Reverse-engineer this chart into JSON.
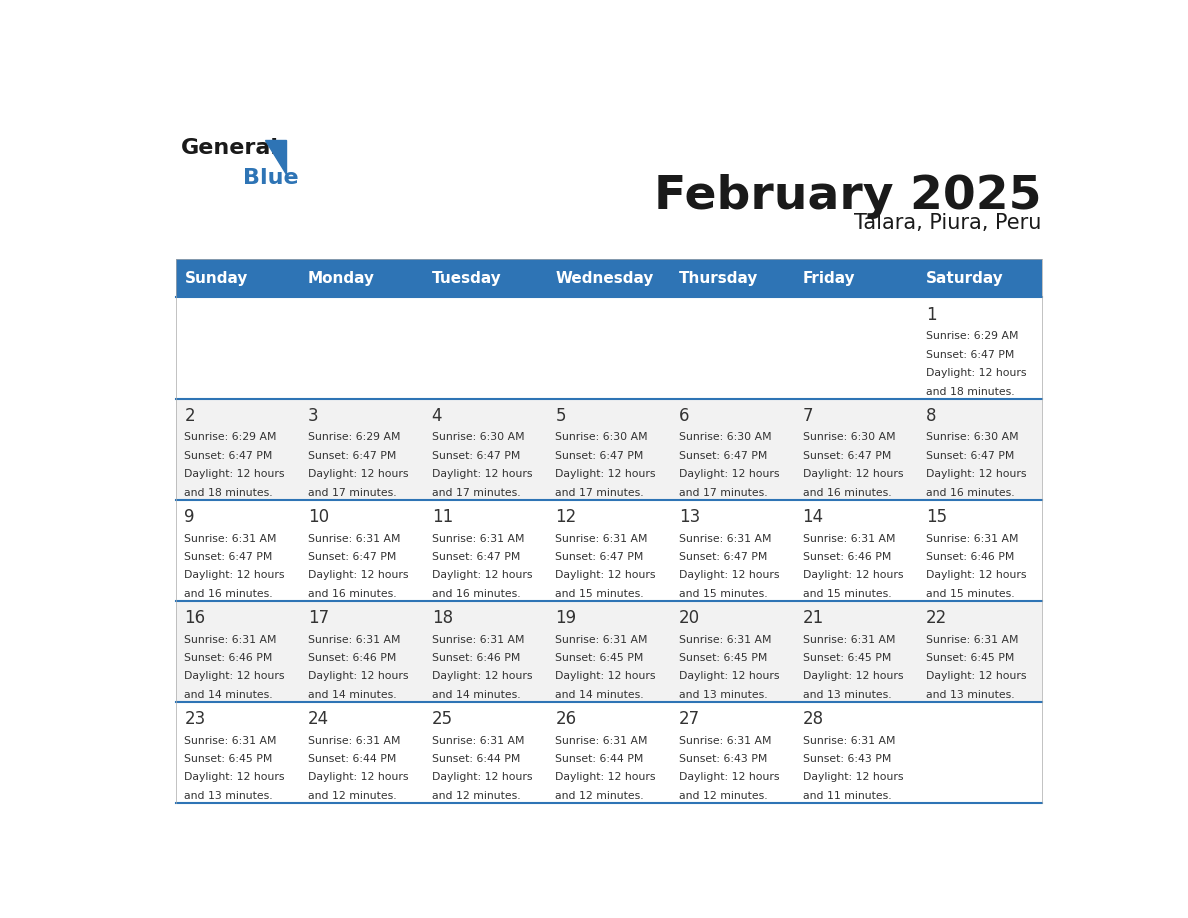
{
  "title": "February 2025",
  "subtitle": "Talara, Piura, Peru",
  "header_color": "#2E74B5",
  "header_text_color": "#FFFFFF",
  "day_names": [
    "Sunday",
    "Monday",
    "Tuesday",
    "Wednesday",
    "Thursday",
    "Friday",
    "Saturday"
  ],
  "bg_color": "#FFFFFF",
  "cell_bg_even": "#F2F2F2",
  "cell_bg_odd": "#FFFFFF",
  "divider_color": "#2E74B5",
  "text_color": "#333333",
  "calendar": [
    [
      null,
      null,
      null,
      null,
      null,
      null,
      1
    ],
    [
      2,
      3,
      4,
      5,
      6,
      7,
      8
    ],
    [
      9,
      10,
      11,
      12,
      13,
      14,
      15
    ],
    [
      16,
      17,
      18,
      19,
      20,
      21,
      22
    ],
    [
      23,
      24,
      25,
      26,
      27,
      28,
      null
    ]
  ],
  "day_data": {
    "1": {
      "sunrise": "6:29 AM",
      "sunset": "6:47 PM",
      "daylight_hours": 12,
      "daylight_minutes": 18
    },
    "2": {
      "sunrise": "6:29 AM",
      "sunset": "6:47 PM",
      "daylight_hours": 12,
      "daylight_minutes": 18
    },
    "3": {
      "sunrise": "6:29 AM",
      "sunset": "6:47 PM",
      "daylight_hours": 12,
      "daylight_minutes": 17
    },
    "4": {
      "sunrise": "6:30 AM",
      "sunset": "6:47 PM",
      "daylight_hours": 12,
      "daylight_minutes": 17
    },
    "5": {
      "sunrise": "6:30 AM",
      "sunset": "6:47 PM",
      "daylight_hours": 12,
      "daylight_minutes": 17
    },
    "6": {
      "sunrise": "6:30 AM",
      "sunset": "6:47 PM",
      "daylight_hours": 12,
      "daylight_minutes": 17
    },
    "7": {
      "sunrise": "6:30 AM",
      "sunset": "6:47 PM",
      "daylight_hours": 12,
      "daylight_minutes": 16
    },
    "8": {
      "sunrise": "6:30 AM",
      "sunset": "6:47 PM",
      "daylight_hours": 12,
      "daylight_minutes": 16
    },
    "9": {
      "sunrise": "6:31 AM",
      "sunset": "6:47 PM",
      "daylight_hours": 12,
      "daylight_minutes": 16
    },
    "10": {
      "sunrise": "6:31 AM",
      "sunset": "6:47 PM",
      "daylight_hours": 12,
      "daylight_minutes": 16
    },
    "11": {
      "sunrise": "6:31 AM",
      "sunset": "6:47 PM",
      "daylight_hours": 12,
      "daylight_minutes": 16
    },
    "12": {
      "sunrise": "6:31 AM",
      "sunset": "6:47 PM",
      "daylight_hours": 12,
      "daylight_minutes": 15
    },
    "13": {
      "sunrise": "6:31 AM",
      "sunset": "6:47 PM",
      "daylight_hours": 12,
      "daylight_minutes": 15
    },
    "14": {
      "sunrise": "6:31 AM",
      "sunset": "6:46 PM",
      "daylight_hours": 12,
      "daylight_minutes": 15
    },
    "15": {
      "sunrise": "6:31 AM",
      "sunset": "6:46 PM",
      "daylight_hours": 12,
      "daylight_minutes": 15
    },
    "16": {
      "sunrise": "6:31 AM",
      "sunset": "6:46 PM",
      "daylight_hours": 12,
      "daylight_minutes": 14
    },
    "17": {
      "sunrise": "6:31 AM",
      "sunset": "6:46 PM",
      "daylight_hours": 12,
      "daylight_minutes": 14
    },
    "18": {
      "sunrise": "6:31 AM",
      "sunset": "6:46 PM",
      "daylight_hours": 12,
      "daylight_minutes": 14
    },
    "19": {
      "sunrise": "6:31 AM",
      "sunset": "6:45 PM",
      "daylight_hours": 12,
      "daylight_minutes": 14
    },
    "20": {
      "sunrise": "6:31 AM",
      "sunset": "6:45 PM",
      "daylight_hours": 12,
      "daylight_minutes": 13
    },
    "21": {
      "sunrise": "6:31 AM",
      "sunset": "6:45 PM",
      "daylight_hours": 12,
      "daylight_minutes": 13
    },
    "22": {
      "sunrise": "6:31 AM",
      "sunset": "6:45 PM",
      "daylight_hours": 12,
      "daylight_minutes": 13
    },
    "23": {
      "sunrise": "6:31 AM",
      "sunset": "6:45 PM",
      "daylight_hours": 12,
      "daylight_minutes": 13
    },
    "24": {
      "sunrise": "6:31 AM",
      "sunset": "6:44 PM",
      "daylight_hours": 12,
      "daylight_minutes": 12
    },
    "25": {
      "sunrise": "6:31 AM",
      "sunset": "6:44 PM",
      "daylight_hours": 12,
      "daylight_minutes": 12
    },
    "26": {
      "sunrise": "6:31 AM",
      "sunset": "6:44 PM",
      "daylight_hours": 12,
      "daylight_minutes": 12
    },
    "27": {
      "sunrise": "6:31 AM",
      "sunset": "6:43 PM",
      "daylight_hours": 12,
      "daylight_minutes": 12
    },
    "28": {
      "sunrise": "6:31 AM",
      "sunset": "6:43 PM",
      "daylight_hours": 12,
      "daylight_minutes": 11
    }
  },
  "logo_general_color": "#1a1a1a",
  "logo_blue_color": "#2E74B5",
  "title_color": "#1a1a1a",
  "subtitle_color": "#1a1a1a"
}
